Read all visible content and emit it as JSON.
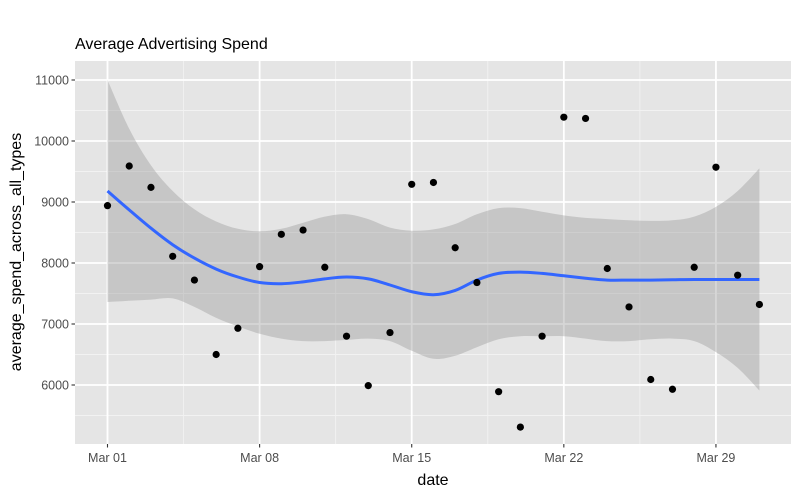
{
  "chart_data": {
    "type": "scatter",
    "title": "Average Advertising Spend",
    "xlabel": "date",
    "ylabel": "average_spend_across_all_types",
    "x_tick_labels": [
      "Mar 01",
      "Mar 08",
      "Mar 15",
      "Mar 22",
      "Mar 29"
    ],
    "x_tick_days": [
      1,
      8,
      15,
      22,
      29
    ],
    "y_ticks": [
      6000,
      7000,
      8000,
      9000,
      10000,
      11000
    ],
    "ylim": [
      5000,
      11300
    ],
    "xlim_days": [
      0.2,
      31.6
    ],
    "grid": true,
    "legend": "none",
    "points": {
      "x_days": [
        1,
        2,
        3,
        4,
        5,
        6,
        7,
        8,
        9,
        10,
        11,
        12,
        13,
        14,
        15,
        16,
        17,
        18,
        19,
        20,
        21,
        22,
        23,
        24,
        25,
        26,
        27,
        28,
        29,
        30,
        31
      ],
      "labels": [
        "Mar 01",
        "Mar 02",
        "Mar 03",
        "Mar 04",
        "Mar 05",
        "Mar 06",
        "Mar 07",
        "Mar 08",
        "Mar 09",
        "Mar 10",
        "Mar 11",
        "Mar 12",
        "Mar 13",
        "Mar 14",
        "Mar 15",
        "Mar 16",
        "Mar 17",
        "Mar 18",
        "Mar 19",
        "Mar 20",
        "Mar 21",
        "Mar 22",
        "Mar 23",
        "Mar 24",
        "Mar 25",
        "Mar 26",
        "Mar 27",
        "Mar 28",
        "Mar 29",
        "Mar 30",
        "Mar 31"
      ],
      "values": [
        8940,
        9590,
        9240,
        8110,
        7720,
        6500,
        6930,
        7940,
        8470,
        8540,
        7930,
        6800,
        5990,
        6860,
        9290,
        9320,
        8250,
        7680,
        5890,
        5310,
        6800,
        10390,
        10370,
        7910,
        7280,
        6090,
        5930,
        7930,
        9570,
        7800,
        7320
      ]
    },
    "smooth": {
      "method": "loess",
      "x_days": [
        1,
        2,
        3,
        4,
        5,
        6,
        7,
        8,
        9,
        10,
        11,
        12,
        13,
        14,
        15,
        16,
        17,
        18,
        19,
        20,
        21,
        22,
        23,
        24,
        25,
        26,
        27,
        28,
        29,
        30,
        31
      ],
      "fit": [
        9180,
        8870,
        8570,
        8300,
        8080,
        7900,
        7770,
        7680,
        7660,
        7690,
        7740,
        7770,
        7740,
        7640,
        7530,
        7480,
        7550,
        7720,
        7830,
        7850,
        7830,
        7790,
        7750,
        7720,
        7720,
        7720,
        7725,
        7730,
        7730,
        7730,
        7730
      ],
      "upper": [
        11000,
        10200,
        9600,
        9180,
        8880,
        8680,
        8560,
        8520,
        8560,
        8660,
        8760,
        8800,
        8720,
        8580,
        8530,
        8550,
        8640,
        8800,
        8900,
        8900,
        8840,
        8780,
        8740,
        8720,
        8700,
        8690,
        8700,
        8760,
        8920,
        9180,
        9550
      ],
      "lower": [
        7360,
        7380,
        7400,
        7420,
        7280,
        7100,
        6960,
        6840,
        6760,
        6720,
        6720,
        6740,
        6760,
        6720,
        6560,
        6430,
        6480,
        6620,
        6750,
        6800,
        6800,
        6800,
        6760,
        6720,
        6720,
        6750,
        6760,
        6720,
        6540,
        6280,
        5910
      ]
    },
    "colors": {
      "panel_background": "#e5e5e5",
      "grid_major": "#ffffff",
      "grid_minor": "#f2f2f2",
      "point": "#000000",
      "smooth_line": "#3366ff",
      "ribbon": "#999999"
    }
  }
}
